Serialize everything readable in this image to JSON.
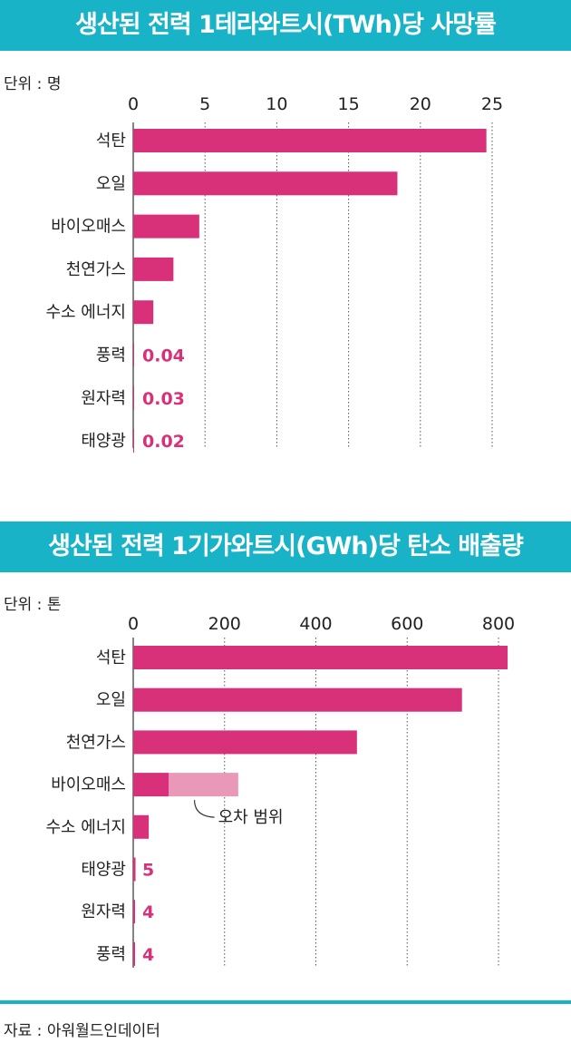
{
  "colors": {
    "banner": "#18b3c6",
    "bar": "#d8317a",
    "bar_light": "#ea98b8",
    "grid": "#555555",
    "text": "#222222"
  },
  "chart_data": [
    {
      "type": "bar",
      "orientation": "horizontal",
      "title": "생산된 전력 1테라와트시(TWh)당 사망률",
      "unit_label": "단위 : 명",
      "xlim": [
        0,
        25
      ],
      "ticks": [
        0,
        5,
        10,
        15,
        20,
        25
      ],
      "grid": "dotted vertical",
      "categories": [
        "석탄",
        "오일",
        "바이오매스",
        "천연가스",
        "수소 에너지",
        "풍력",
        "원자력",
        "태양광"
      ],
      "values": [
        24.6,
        18.4,
        4.6,
        2.8,
        1.4,
        0.04,
        0.03,
        0.02
      ],
      "value_labels": [
        "",
        "",
        "",
        "",
        "",
        "0.04",
        "0.03",
        "0.02"
      ]
    },
    {
      "type": "bar",
      "orientation": "horizontal",
      "title": "생산된 전력 1기가와트시(GWh)당 탄소 배출량",
      "unit_label": "단위 : 톤",
      "xlim": [
        0,
        800
      ],
      "ticks": [
        0,
        200,
        400,
        600,
        800
      ],
      "grid": "dotted vertical",
      "categories": [
        "석탄",
        "오일",
        "천연가스",
        "바이오매스",
        "수소 에너지",
        "태양광",
        "원자력",
        "풍력"
      ],
      "values": [
        820,
        720,
        490,
        78,
        34,
        5,
        4,
        4
      ],
      "value_labels": [
        "",
        "",
        "",
        "",
        "",
        "5",
        "4",
        "4"
      ],
      "error_range": {
        "category": "바이오매스",
        "from": 78,
        "to": 230,
        "label": "오차 범위"
      }
    }
  ],
  "footer": {
    "source": "자료 : 아워월드인데이터"
  }
}
